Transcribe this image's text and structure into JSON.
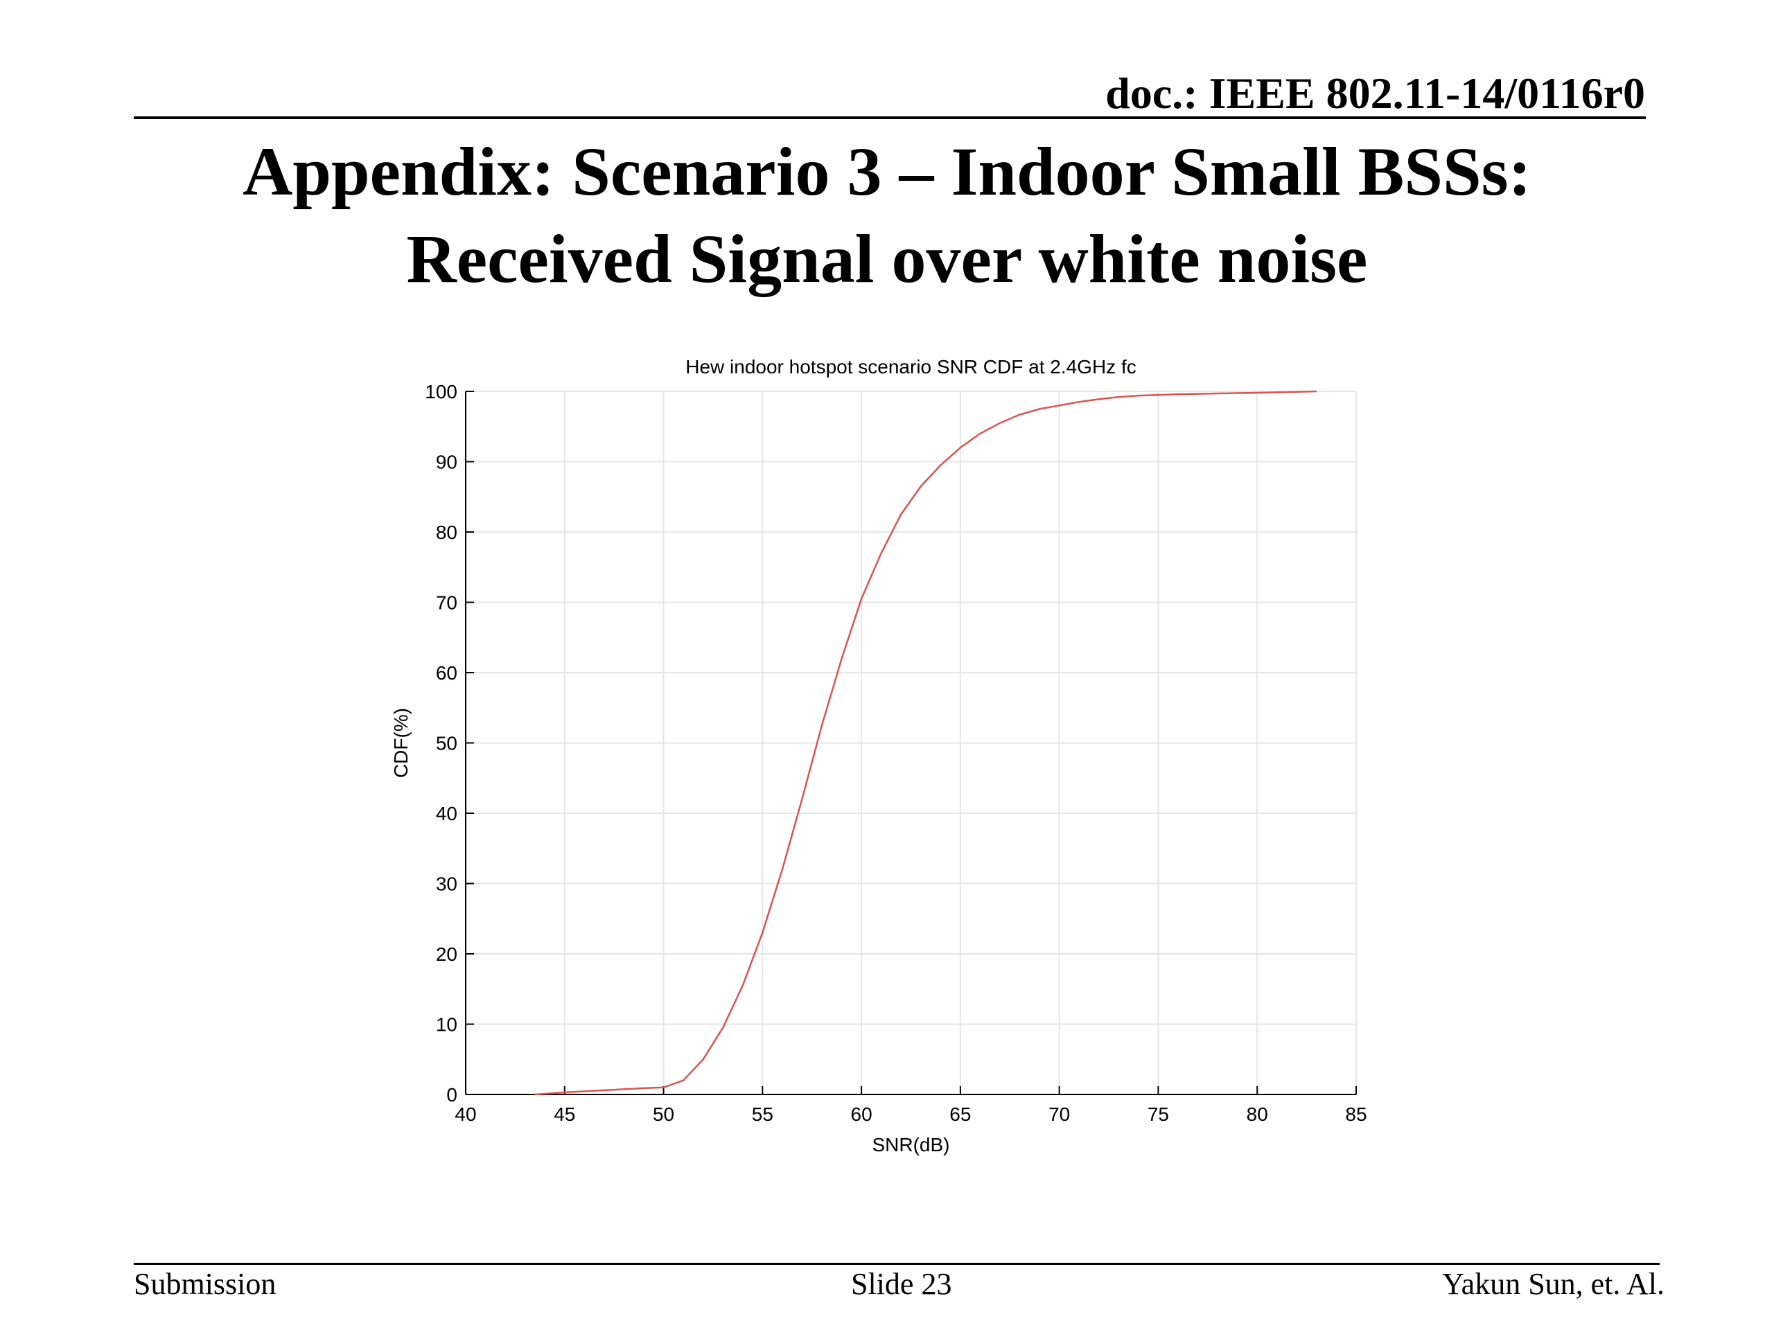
{
  "header": {
    "doc_id": "doc.: IEEE 802.11-14/0116r0"
  },
  "slide": {
    "title_line1": "Appendix: Scenario 3 – Indoor Small BSSs:",
    "title_line2": "Received Signal over white noise"
  },
  "footer": {
    "left": "Submission",
    "center": "Slide 23",
    "right": "Yakun Sun, et. Al."
  },
  "chart_data": {
    "type": "line",
    "title": "Hew indoor hotspot scenario SNR CDF at 2.4GHz fc",
    "xlabel": "SNR(dB)",
    "ylabel": "CDF(%)",
    "xlim": [
      40,
      85
    ],
    "ylim": [
      0,
      100
    ],
    "xticks": [
      40,
      45,
      50,
      55,
      60,
      65,
      70,
      75,
      80,
      85
    ],
    "yticks": [
      0,
      10,
      20,
      30,
      40,
      50,
      60,
      70,
      80,
      90,
      100
    ],
    "grid": true,
    "line_color": "#d9534f",
    "series": [
      {
        "x": [
          43.5,
          45,
          47,
          49,
          50,
          51,
          52,
          53,
          54,
          55,
          56,
          57,
          58,
          59,
          60,
          61,
          62,
          63,
          64,
          65,
          66,
          67,
          68,
          69,
          70,
          71,
          72,
          73,
          74,
          75,
          76,
          78,
          80,
          83
        ],
        "y": [
          0,
          0.3,
          0.6,
          0.9,
          1.0,
          2.0,
          5.0,
          9.5,
          15.5,
          23.0,
          32.0,
          42.0,
          52.5,
          62.0,
          70.5,
          77.0,
          82.5,
          86.5,
          89.5,
          92.0,
          94.0,
          95.5,
          96.7,
          97.5,
          98.0,
          98.5,
          98.9,
          99.2,
          99.4,
          99.5,
          99.6,
          99.7,
          99.8,
          100.0
        ]
      }
    ]
  }
}
